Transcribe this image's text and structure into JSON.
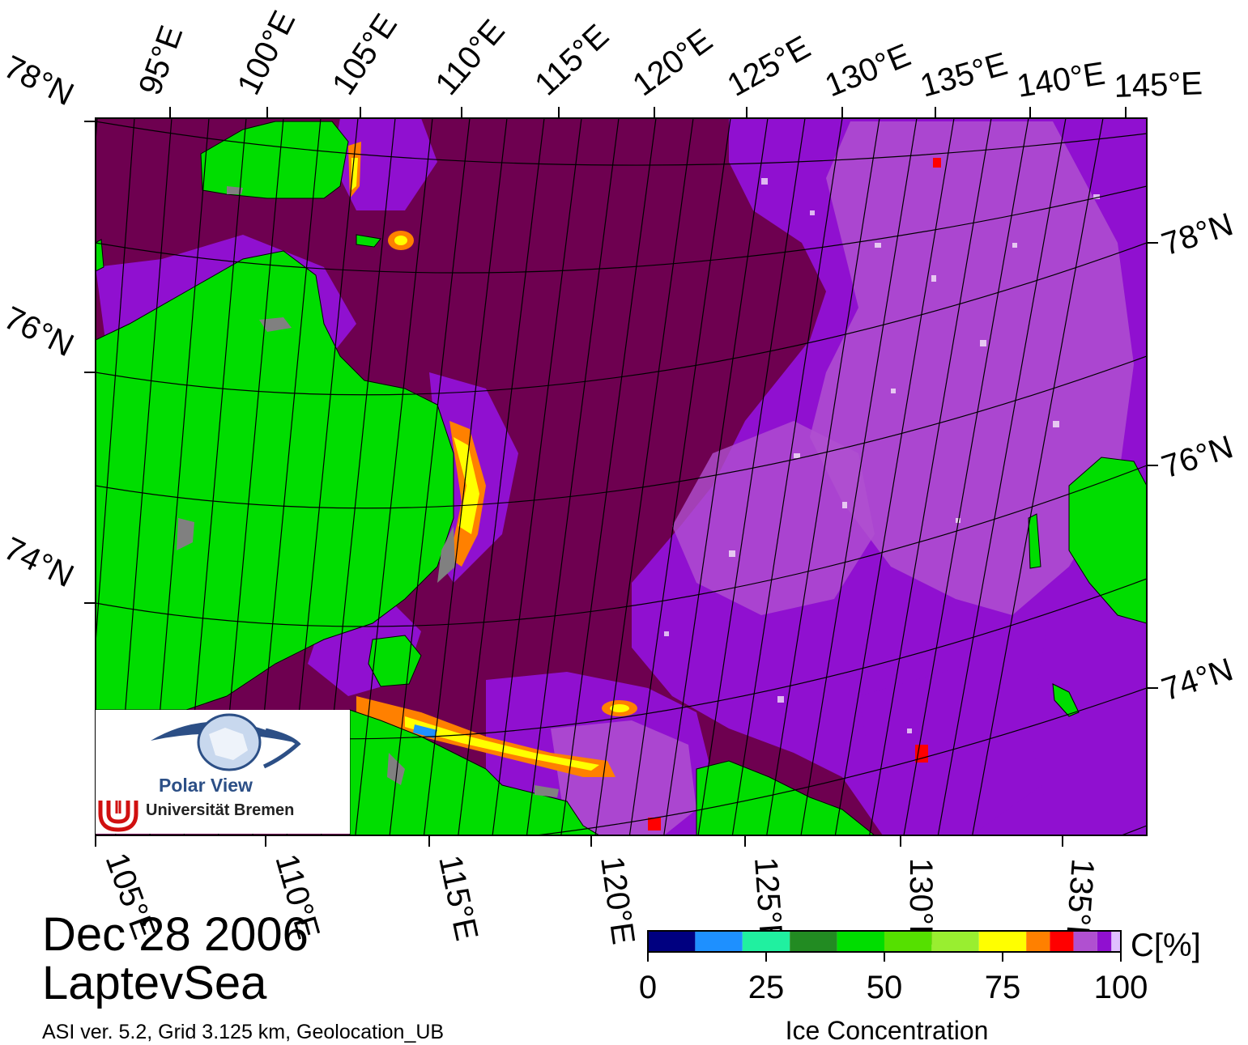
{
  "map": {
    "top_lon_labels": [
      "95°E",
      "100°E",
      "105°E",
      "110°E",
      "115°E",
      "120°E",
      "125°E",
      "130°E",
      "135°E",
      "140°E",
      "145°E"
    ],
    "bottom_lon_labels": [
      "105°E",
      "110°E",
      "115°E",
      "120°E",
      "125°E",
      "130°E",
      "135°E"
    ],
    "left_lat_labels": [
      "78°N",
      "76°N",
      "74°N"
    ],
    "right_lat_labels": [
      "78°N",
      "76°N",
      "74°N"
    ],
    "land_color": "#00dd00",
    "ocean_color": "#6e0050",
    "coast_mask_color": "#808080"
  },
  "caption": {
    "date": "Dec 28 2006",
    "region": "LaptevSea",
    "version_note": "ASI ver. 5.2,  Grid 3.125 km, Geolocation_UB"
  },
  "logo": {
    "name": "Polar View",
    "institution": "Universität Bremen"
  },
  "colorbar": {
    "unit": "C[%]",
    "title": "Ice Concentration",
    "ticks": [
      "0",
      "25",
      "50",
      "75",
      "100"
    ],
    "colors": [
      "#000080",
      "#1e90ff",
      "#20f0a0",
      "#228b22",
      "#00dd00",
      "#55e000",
      "#99ee30",
      "#ffff00",
      "#ff8000",
      "#ff0000",
      "#b050d0",
      "#9010d0",
      "#e0c0ff"
    ]
  }
}
